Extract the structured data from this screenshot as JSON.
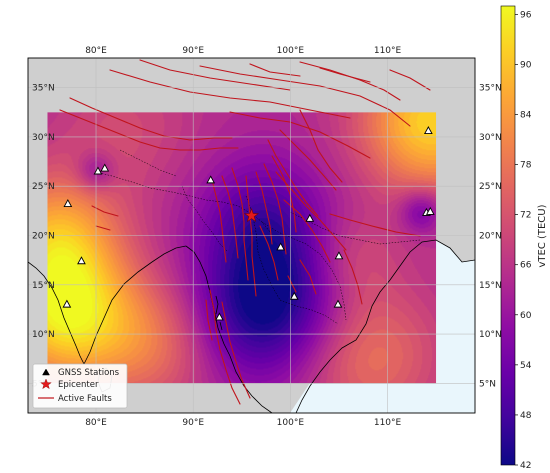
{
  "map": {
    "lon_range": [
      73,
      119
    ],
    "lat_range": [
      2,
      38
    ],
    "lon_ticks": [
      {
        "value": 80,
        "label": "80°E"
      },
      {
        "value": 90,
        "label": "90°E"
      },
      {
        "value": 100,
        "label": "100°E"
      },
      {
        "value": 110,
        "label": "110°E"
      }
    ],
    "lat_ticks": [
      {
        "value": 5,
        "label": "5°N"
      },
      {
        "value": 10,
        "label": "10°N"
      },
      {
        "value": 15,
        "label": "15°N"
      },
      {
        "value": 20,
        "label": "20°N"
      },
      {
        "value": 25,
        "label": "25°N"
      },
      {
        "value": 30,
        "label": "30°N"
      },
      {
        "value": 35,
        "label": "35°N"
      }
    ],
    "tec_region": {
      "lon": [
        75,
        115
      ],
      "lat": [
        5,
        32.5
      ]
    },
    "grid": true,
    "land_color": "#cfcfcf",
    "ocean_color": "#e9f6fc",
    "fault_color": "#c0141c",
    "epicenter": {
      "lon": 96.0,
      "lat": 22.0
    },
    "stations": [
      {
        "lon": 80.2,
        "lat": 26.5
      },
      {
        "lon": 80.9,
        "lat": 26.8
      },
      {
        "lon": 77.1,
        "lat": 23.2
      },
      {
        "lon": 78.5,
        "lat": 17.4
      },
      {
        "lon": 77.0,
        "lat": 13.0
      },
      {
        "lon": 91.8,
        "lat": 25.6
      },
      {
        "lon": 102.0,
        "lat": 21.7
      },
      {
        "lon": 99.0,
        "lat": 18.8
      },
      {
        "lon": 105.0,
        "lat": 17.9
      },
      {
        "lon": 100.4,
        "lat": 13.8
      },
      {
        "lon": 104.9,
        "lat": 13.0
      },
      {
        "lon": 92.7,
        "lat": 11.7
      },
      {
        "lon": 114.0,
        "lat": 22.3
      },
      {
        "lon": 114.4,
        "lat": 22.4
      },
      {
        "lon": 114.2,
        "lat": 30.6
      }
    ],
    "tec_field": {
      "base": 64,
      "blobs": [
        {
          "lon": 98.5,
          "lat": 14.0,
          "amp": -20,
          "sigma": 5.5
        },
        {
          "lon": 97.0,
          "lat": 22.0,
          "amp": -11,
          "sigma": 4.5
        },
        {
          "lon": 95.5,
          "lat": 11.0,
          "amp": -6,
          "sigma": 4.5
        },
        {
          "lon": 77.0,
          "lat": 12.0,
          "amp": 30,
          "sigma": 5.0
        },
        {
          "lon": 76.0,
          "lat": 20.0,
          "amp": 20,
          "sigma": 4.5
        },
        {
          "lon": 114.5,
          "lat": 31.5,
          "amp": 28,
          "sigma": 5.0
        },
        {
          "lon": 106.0,
          "lat": 17.5,
          "amp": 8,
          "sigma": 3.5
        },
        {
          "lon": 108.0,
          "lat": 8.0,
          "amp": 14,
          "sigma": 5.0
        },
        {
          "lon": 80.0,
          "lat": 26.5,
          "amp": -10,
          "sigma": 1.4
        },
        {
          "lon": 113.5,
          "lat": 22.5,
          "amp": -12,
          "sigma": 1.6
        },
        {
          "lon": 86.0,
          "lat": 9.0,
          "amp": 12,
          "sigma": 4.5
        },
        {
          "lon": 83.0,
          "lat": 31.0,
          "amp": 6,
          "sigma": 5.0
        }
      ]
    }
  },
  "legend": {
    "items": [
      {
        "key": "stations",
        "label": "GNSS Stations"
      },
      {
        "key": "epicenter",
        "label": "Epicenter"
      },
      {
        "key": "faults",
        "label": "Active Faults"
      }
    ]
  },
  "colorbar": {
    "label": "vTEC (TECU)",
    "min": 42,
    "max": 97,
    "ticks": [
      42,
      48,
      54,
      60,
      66,
      72,
      78,
      84,
      90,
      96
    ],
    "colormap": "plasma"
  }
}
